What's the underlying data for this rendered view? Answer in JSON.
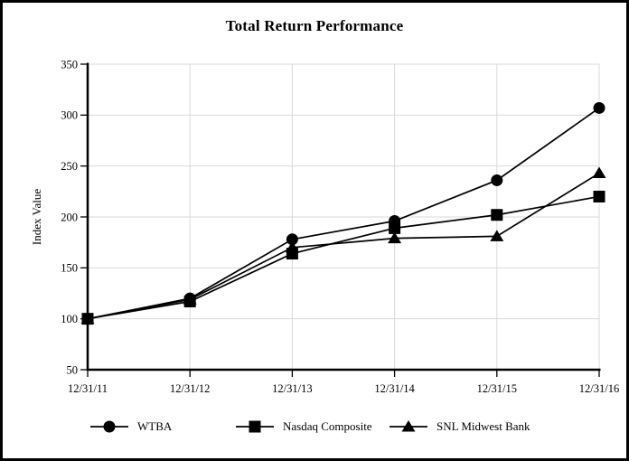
{
  "window": {
    "title": "Total Return Performance"
  },
  "chart_data": {
    "type": "line",
    "title": "Total Return Performance",
    "xlabel": "",
    "ylabel": "Index Value",
    "categories": [
      "12/31/11",
      "12/31/12",
      "12/31/13",
      "12/31/14",
      "12/31/15",
      "12/31/16"
    ],
    "series": [
      {
        "name": "WTBA",
        "marker": "circle",
        "values": [
          100,
          120,
          178,
          196,
          236,
          307
        ]
      },
      {
        "name": "Nasdaq Composite",
        "marker": "square",
        "values": [
          100,
          117,
          164,
          189,
          202,
          220
        ]
      },
      {
        "name": "SNL Midwest Bank",
        "marker": "triangle",
        "values": [
          100,
          119,
          170,
          179,
          181,
          243
        ]
      }
    ],
    "ylim": [
      50,
      350
    ],
    "yticks": [
      50,
      100,
      150,
      200,
      250,
      300,
      350
    ],
    "grid": true,
    "legend_position": "bottom",
    "colors": {
      "line": "#000000",
      "grid": "#d9d9d9",
      "background": "#ffffff",
      "frame_border": "#000000"
    }
  }
}
